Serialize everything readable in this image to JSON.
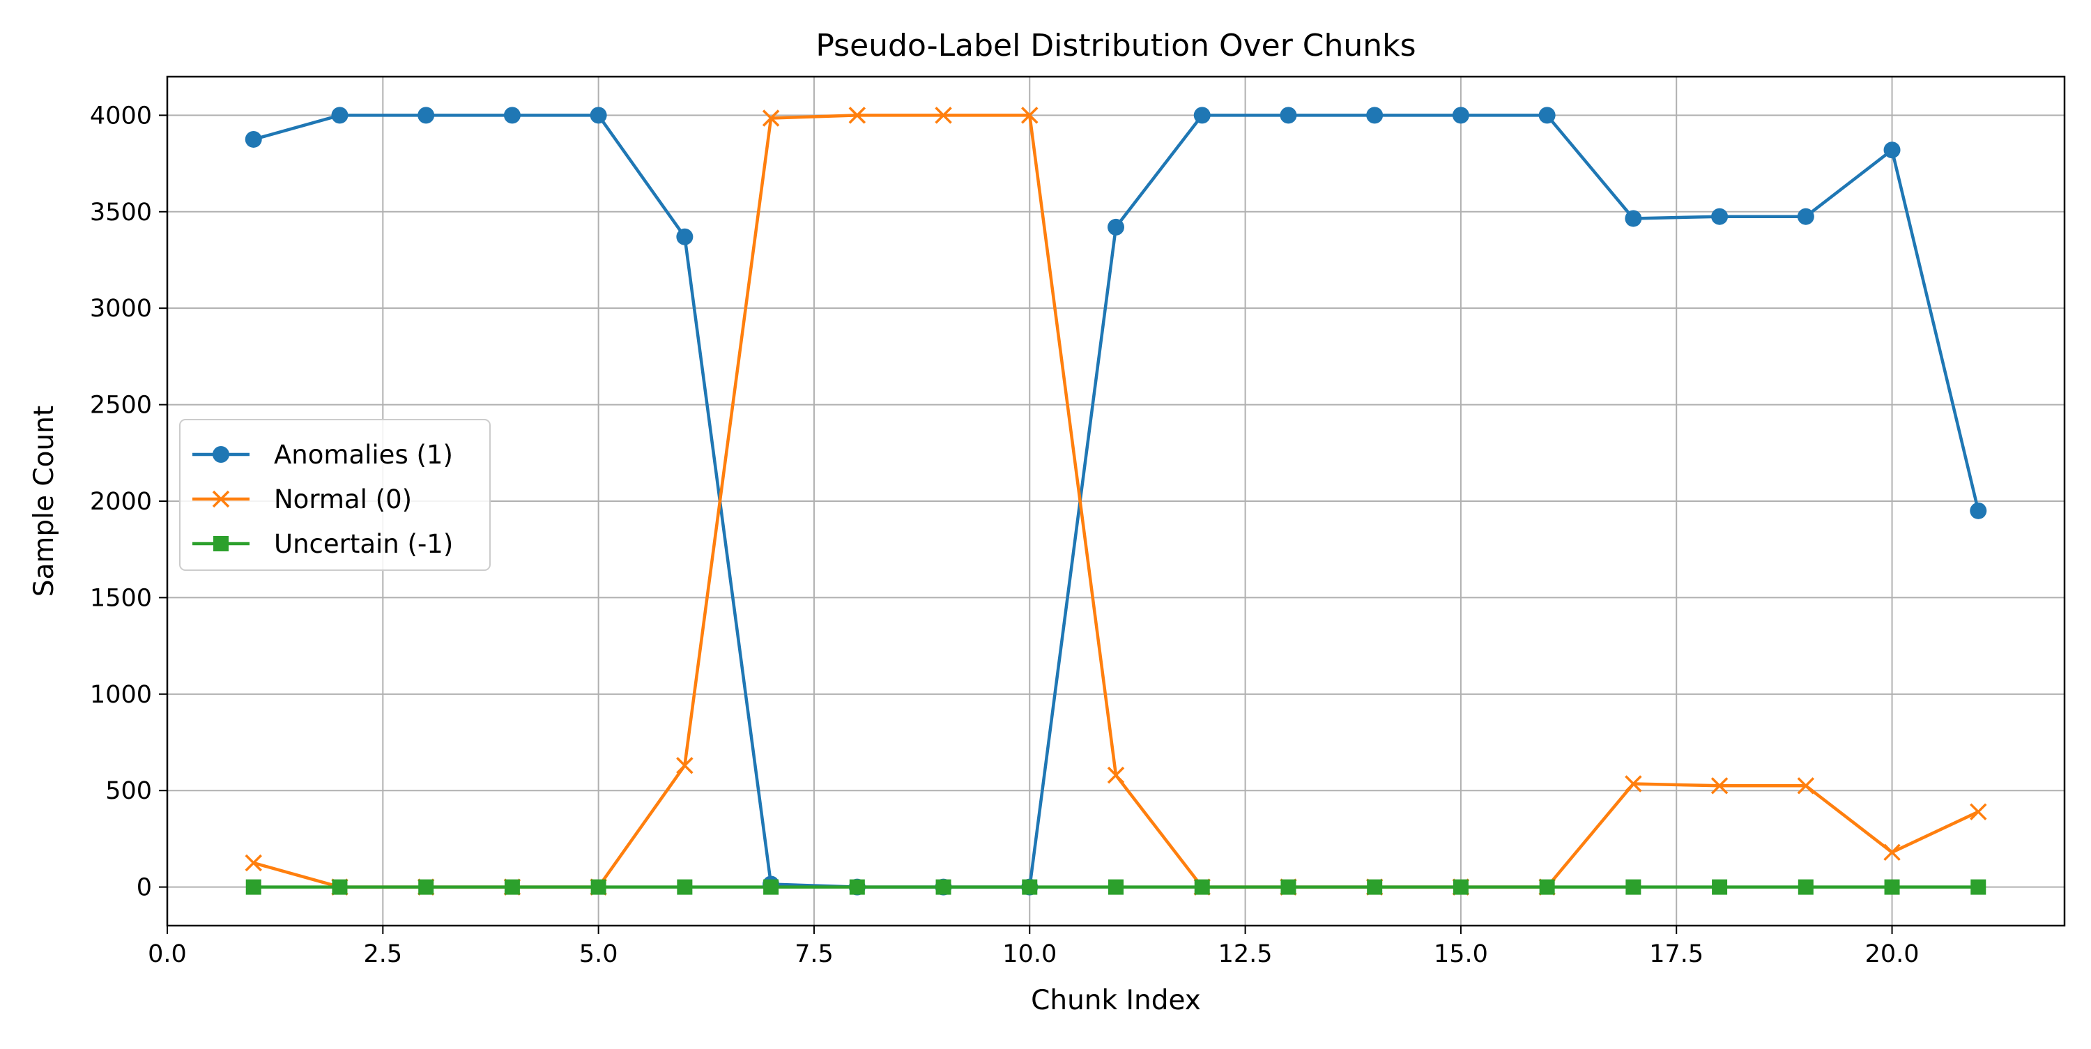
{
  "chart_data": {
    "type": "line",
    "title": "Pseudo-Label Distribution Over Chunks",
    "xlabel": "Chunk Index",
    "ylabel": "Sample Count",
    "xlim": [
      0,
      22
    ],
    "ylim": [
      -200,
      4200
    ],
    "x_ticks": [
      0,
      2.5,
      5,
      7.5,
      10,
      12.5,
      15,
      17.5,
      20
    ],
    "x_tick_labels": [
      "0.0",
      "2.5",
      "5.0",
      "7.5",
      "10.0",
      "12.5",
      "15.0",
      "17.5",
      "20.0"
    ],
    "y_ticks": [
      0,
      500,
      1000,
      1500,
      2000,
      2500,
      3000,
      3500,
      4000
    ],
    "y_tick_labels": [
      "0",
      "500",
      "1000",
      "1500",
      "2000",
      "2500",
      "3000",
      "3500",
      "4000"
    ],
    "grid": true,
    "legend_position": "center-left",
    "x": [
      1,
      2,
      3,
      4,
      5,
      6,
      7,
      8,
      9,
      10,
      11,
      12,
      13,
      14,
      15,
      16,
      17,
      18,
      19,
      20,
      21
    ],
    "series": [
      {
        "name": "Anomalies (1)",
        "color": "#1f77b4",
        "marker": "circle",
        "values": [
          3875,
          4000,
          4000,
          4000,
          4000,
          3370,
          15,
          0,
          0,
          0,
          3420,
          4000,
          4000,
          4000,
          4000,
          4000,
          3465,
          3475,
          3475,
          3820,
          1950
        ]
      },
      {
        "name": "Normal (0)",
        "color": "#ff7f0e",
        "marker": "x",
        "values": [
          125,
          0,
          0,
          0,
          0,
          630,
          3985,
          4000,
          4000,
          4000,
          580,
          0,
          0,
          0,
          0,
          0,
          535,
          525,
          525,
          180,
          390
        ]
      },
      {
        "name": "Uncertain (-1)",
        "color": "#2ca02c",
        "marker": "square",
        "values": [
          0,
          0,
          0,
          0,
          0,
          0,
          0,
          0,
          0,
          0,
          0,
          0,
          0,
          0,
          0,
          0,
          0,
          0,
          0,
          0,
          0
        ]
      }
    ]
  }
}
